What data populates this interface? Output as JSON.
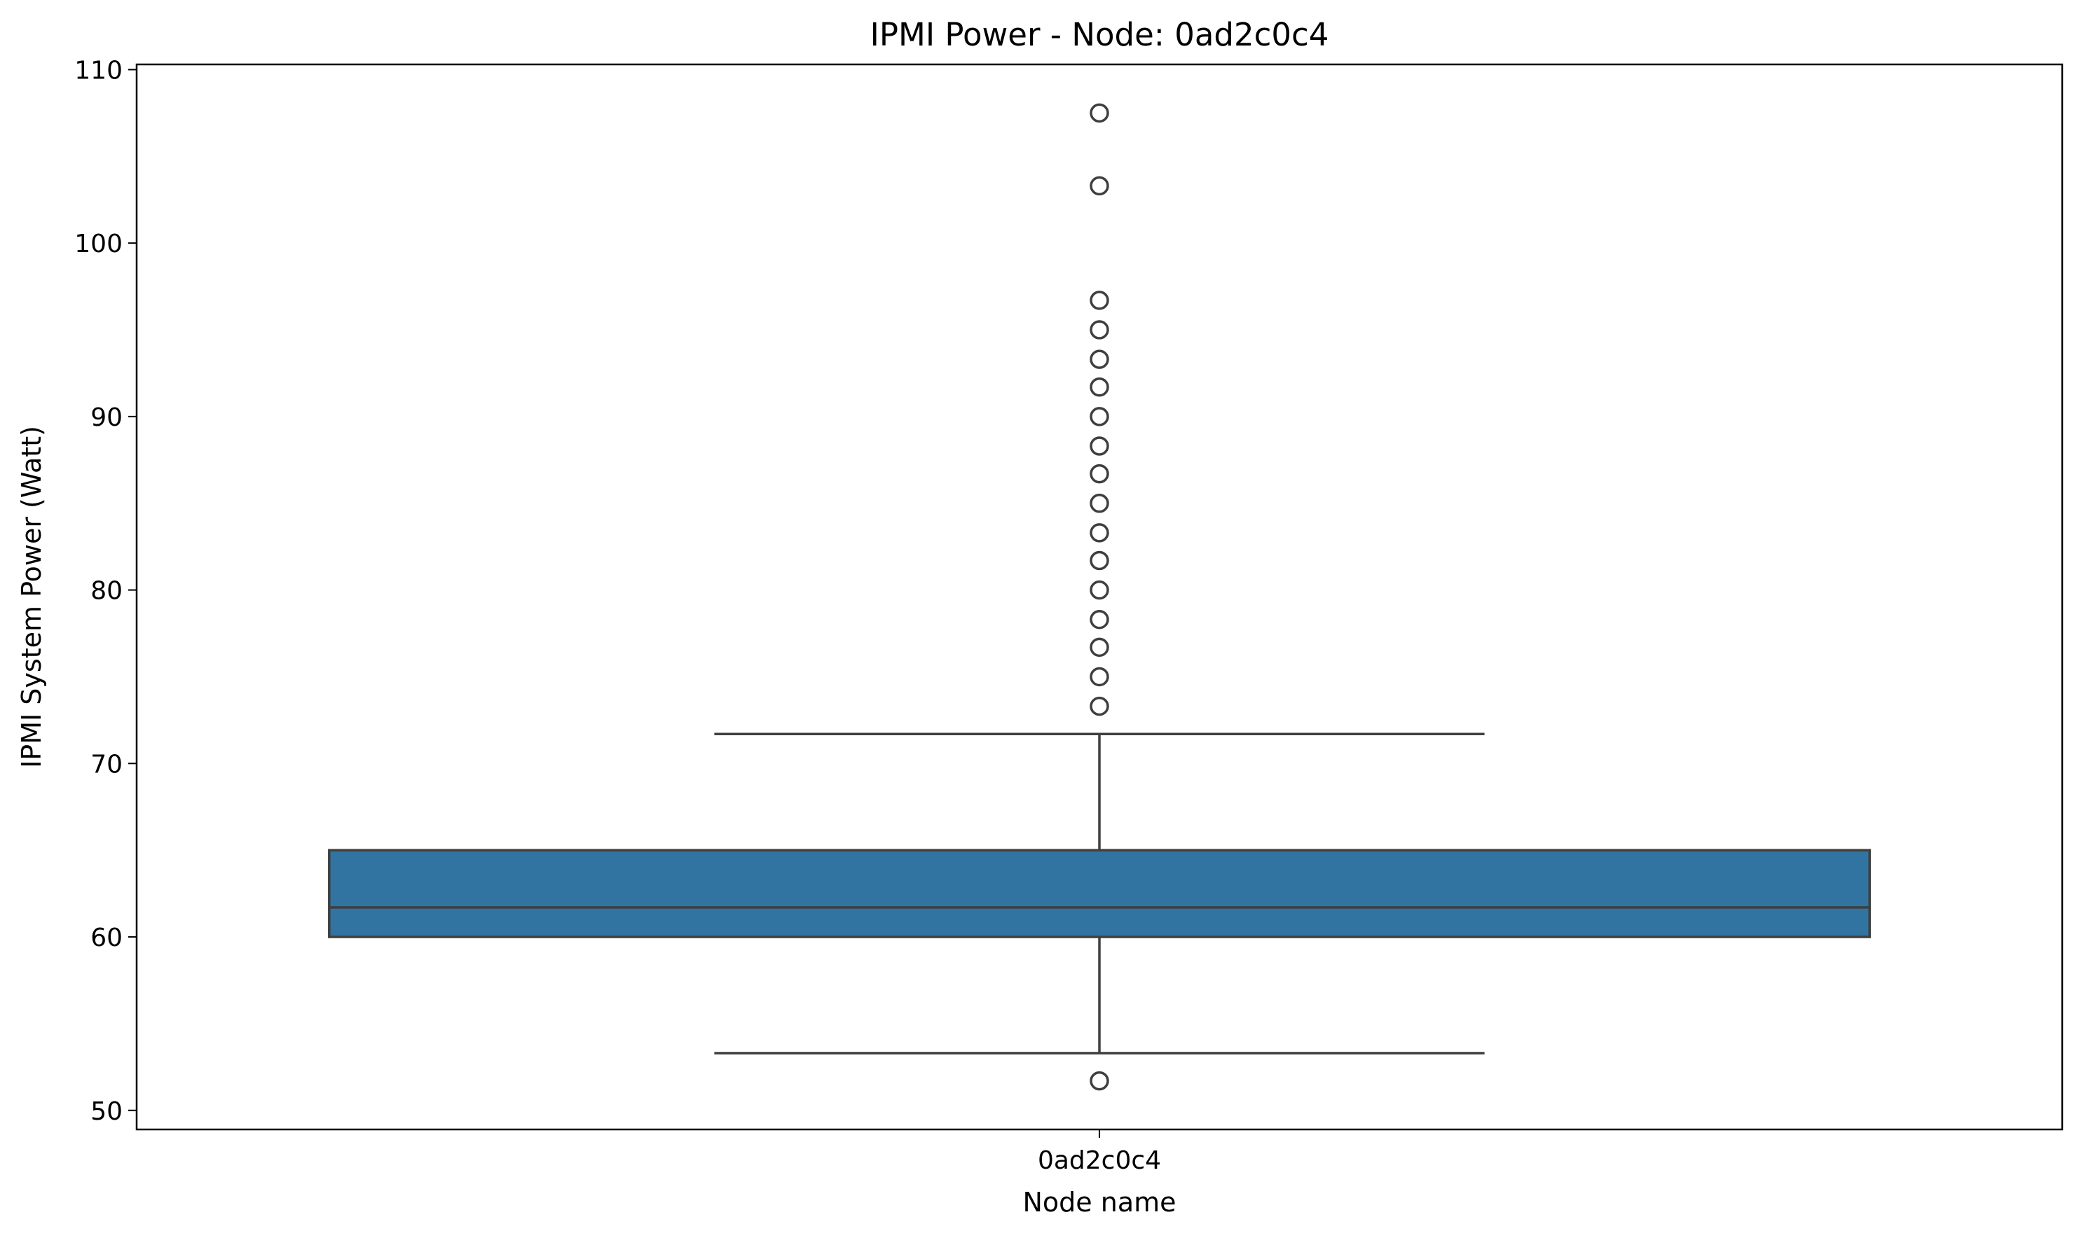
{
  "chart_data": {
    "type": "box",
    "title": "IPMI Power - Node: 0ad2c0c4",
    "xlabel": "Node name",
    "ylabel": "IPMI System Power (Watt)",
    "categories": [
      "0ad2c0c4"
    ],
    "ylim": [
      48.9,
      110.3
    ],
    "yticks": [
      50,
      60,
      70,
      80,
      90,
      100,
      110
    ],
    "grid": false,
    "legend": "none",
    "box_color": "#3274a1",
    "line_color": "#3f3f3f",
    "boxes": [
      {
        "category": "0ad2c0c4",
        "whisker_low": 53.3,
        "q1": 60.0,
        "median": 61.7,
        "q3": 65.0,
        "whisker_high": 71.7,
        "outliers": [
          51.7,
          73.3,
          75.0,
          76.7,
          78.3,
          80.0,
          81.7,
          83.3,
          85.0,
          86.7,
          88.3,
          90.0,
          91.7,
          93.3,
          95.0,
          96.7,
          103.3,
          107.5
        ]
      }
    ]
  }
}
